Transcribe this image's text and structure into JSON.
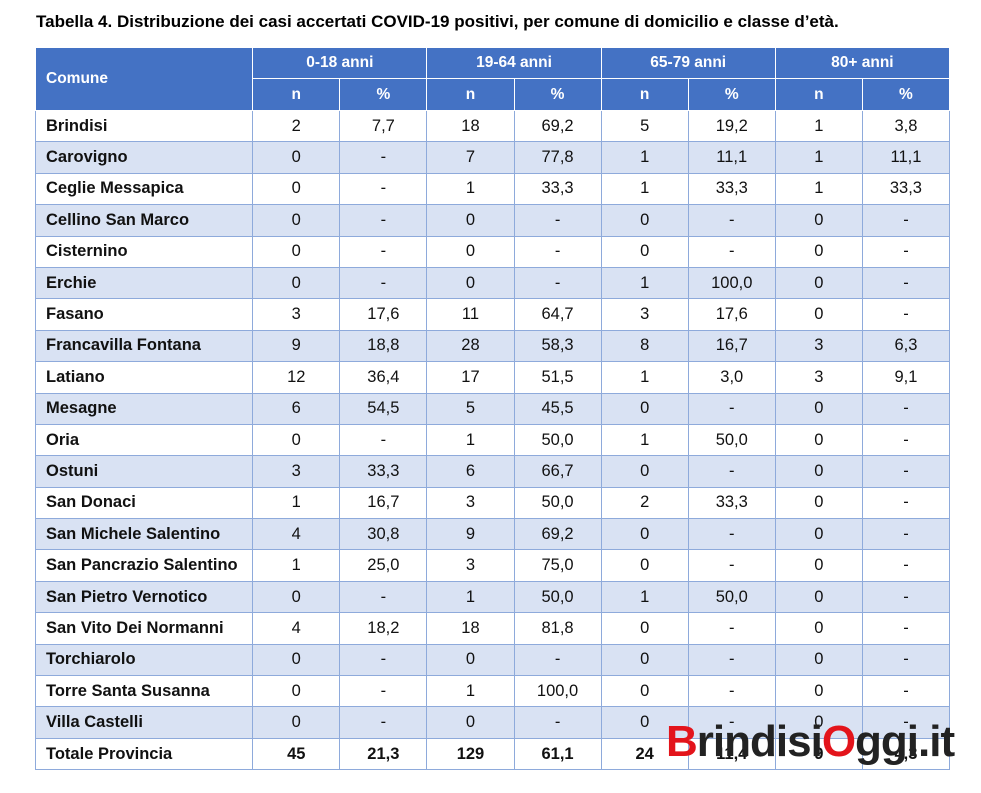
{
  "title": "Tabella 4. Distribuzione dei casi accertati COVID-19 positivi, per comune di domicilio e classe d’età.",
  "header": {
    "comune": "Comune",
    "groups": [
      "0-18 anni",
      "19-64 anni",
      "65-79 anni",
      "80+ anni"
    ],
    "sub": [
      "n",
      "%",
      "n",
      "%",
      "n",
      "%",
      "n",
      "%"
    ]
  },
  "rows": [
    [
      "Brindisi",
      "2",
      "7,7",
      "18",
      "69,2",
      "5",
      "19,2",
      "1",
      "3,8"
    ],
    [
      "Carovigno",
      "0",
      "-",
      "7",
      "77,8",
      "1",
      "11,1",
      "1",
      "11,1"
    ],
    [
      "Ceglie Messapica",
      "0",
      "-",
      "1",
      "33,3",
      "1",
      "33,3",
      "1",
      "33,3"
    ],
    [
      "Cellino San Marco",
      "0",
      "-",
      "0",
      "-",
      "0",
      "-",
      "0",
      "-"
    ],
    [
      "Cisternino",
      "0",
      "-",
      "0",
      "-",
      "0",
      "-",
      "0",
      "-"
    ],
    [
      "Erchie",
      "0",
      "-",
      "0",
      "-",
      "1",
      "100,0",
      "0",
      "-"
    ],
    [
      "Fasano",
      "3",
      "17,6",
      "11",
      "64,7",
      "3",
      "17,6",
      "0",
      "-"
    ],
    [
      "Francavilla Fontana",
      "9",
      "18,8",
      "28",
      "58,3",
      "8",
      "16,7",
      "3",
      "6,3"
    ],
    [
      "Latiano",
      "12",
      "36,4",
      "17",
      "51,5",
      "1",
      "3,0",
      "3",
      "9,1"
    ],
    [
      "Mesagne",
      "6",
      "54,5",
      "5",
      "45,5",
      "0",
      "-",
      "0",
      "-"
    ],
    [
      "Oria",
      "0",
      "-",
      "1",
      "50,0",
      "1",
      "50,0",
      "0",
      "-"
    ],
    [
      "Ostuni",
      "3",
      "33,3",
      "6",
      "66,7",
      "0",
      "-",
      "0",
      "-"
    ],
    [
      "San Donaci",
      "1",
      "16,7",
      "3",
      "50,0",
      "2",
      "33,3",
      "0",
      "-"
    ],
    [
      "San Michele Salentino",
      "4",
      "30,8",
      "9",
      "69,2",
      "0",
      "-",
      "0",
      "-"
    ],
    [
      "San Pancrazio Salentino",
      "1",
      "25,0",
      "3",
      "75,0",
      "0",
      "-",
      "0",
      "-"
    ],
    [
      "San Pietro Vernotico",
      "0",
      "-",
      "1",
      "50,0",
      "1",
      "50,0",
      "0",
      "-"
    ],
    [
      "San Vito Dei Normanni",
      "4",
      "18,2",
      "18",
      "81,8",
      "0",
      "-",
      "0",
      "-"
    ],
    [
      "Torchiarolo",
      "0",
      "-",
      "0",
      "-",
      "0",
      "-",
      "0",
      "-"
    ],
    [
      "Torre Santa Susanna",
      "0",
      "-",
      "1",
      "100,0",
      "0",
      "-",
      "0",
      "-"
    ],
    [
      "Villa Castelli",
      "0",
      "-",
      "0",
      "-",
      "0",
      "-",
      "0",
      "-"
    ]
  ],
  "total": [
    "Totale Provincia",
    "45",
    "21,3",
    "129",
    "61,1",
    "24",
    "11,4",
    "9",
    "4,3"
  ],
  "watermark": {
    "parts": [
      "B",
      "rindisi",
      "O",
      "ggi.it"
    ],
    "colors": [
      "#e3141b",
      "#222222",
      "#e3141b",
      "#222222"
    ]
  }
}
